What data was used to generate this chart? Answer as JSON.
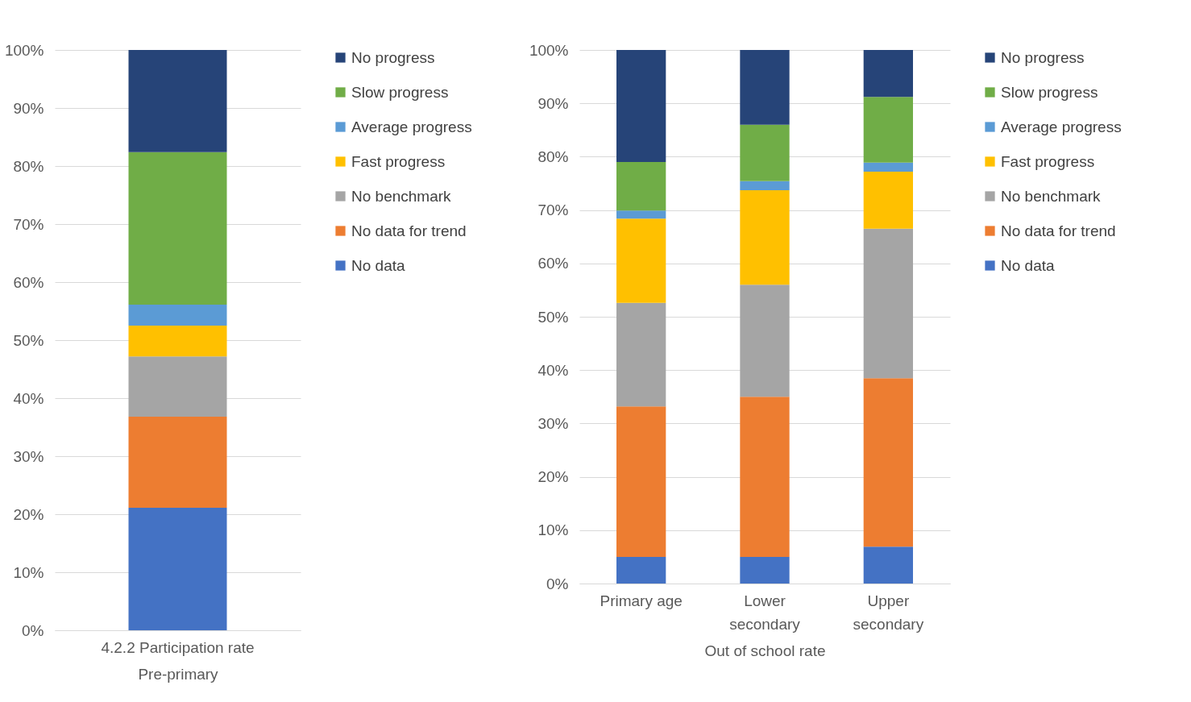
{
  "chart_data": [
    {
      "type": "bar",
      "stacked": true,
      "categories": [
        "4.2.2 Participation rate"
      ],
      "xlabel": "Pre-primary",
      "ylim": [
        0,
        100
      ],
      "yticks": [
        {
          "value": 0,
          "label": "0%"
        },
        {
          "value": 10,
          "label": "10%"
        },
        {
          "value": 20,
          "label": "20%"
        },
        {
          "value": 30,
          "label": "30%"
        },
        {
          "value": 40,
          "label": "40%"
        },
        {
          "value": 50,
          "label": "50%"
        },
        {
          "value": 60,
          "label": "60%"
        },
        {
          "value": 70,
          "label": "70%"
        },
        {
          "value": 80,
          "label": "80%"
        },
        {
          "value": 90,
          "label": "90%"
        },
        {
          "value": 100,
          "label": "100%"
        }
      ],
      "grid": "y",
      "legend": "right",
      "series": [
        {
          "name": "No data",
          "color": "#4472c4",
          "values": [
            21.1
          ]
        },
        {
          "name": "No data for trend",
          "color": "#ed7d31",
          "values": [
            15.7
          ]
        },
        {
          "name": "No benchmark",
          "color": "#a5a5a5",
          "values": [
            10.4
          ]
        },
        {
          "name": "Fast progress",
          "color": "#ffc000",
          "values": [
            5.3
          ]
        },
        {
          "name": "Average progress",
          "color": "#5b9bd5",
          "values": [
            3.6
          ]
        },
        {
          "name": "Slow progress",
          "color": "#70ad47",
          "values": [
            26.3
          ]
        },
        {
          "name": "No progress",
          "color": "#264478",
          "values": [
            17.6
          ]
        }
      ]
    },
    {
      "type": "bar",
      "stacked": true,
      "categories": [
        "Primary age",
        "Lower secondary",
        "Upper secondary"
      ],
      "xlabel": "Out of school rate",
      "ylim": [
        0,
        100
      ],
      "yticks": [
        {
          "value": 0,
          "label": "0%"
        },
        {
          "value": 10,
          "label": "10%"
        },
        {
          "value": 20,
          "label": "20%"
        },
        {
          "value": 30,
          "label": "30%"
        },
        {
          "value": 40,
          "label": "40%"
        },
        {
          "value": 50,
          "label": "50%"
        },
        {
          "value": 60,
          "label": "60%"
        },
        {
          "value": 70,
          "label": "70%"
        },
        {
          "value": 80,
          "label": "80%"
        },
        {
          "value": 90,
          "label": "90%"
        },
        {
          "value": 100,
          "label": "100%"
        }
      ],
      "grid": "y",
      "legend": "right",
      "series": [
        {
          "name": "No data",
          "color": "#4472c4",
          "values": [
            5.0,
            5.0,
            6.9
          ]
        },
        {
          "name": "No data for trend",
          "color": "#ed7d31",
          "values": [
            28.2,
            30.0,
            31.6
          ]
        },
        {
          "name": "No benchmark",
          "color": "#a5a5a5",
          "values": [
            19.4,
            21.0,
            28.0
          ]
        },
        {
          "name": "Fast progress",
          "color": "#ffc000",
          "values": [
            15.8,
            17.7,
            10.7
          ]
        },
        {
          "name": "Average progress",
          "color": "#5b9bd5",
          "values": [
            1.5,
            1.7,
            1.7
          ]
        },
        {
          "name": "Slow progress",
          "color": "#70ad47",
          "values": [
            9.1,
            10.6,
            12.3
          ]
        },
        {
          "name": "No progress",
          "color": "#264478",
          "values": [
            21.0,
            14.0,
            8.8
          ]
        }
      ]
    }
  ]
}
